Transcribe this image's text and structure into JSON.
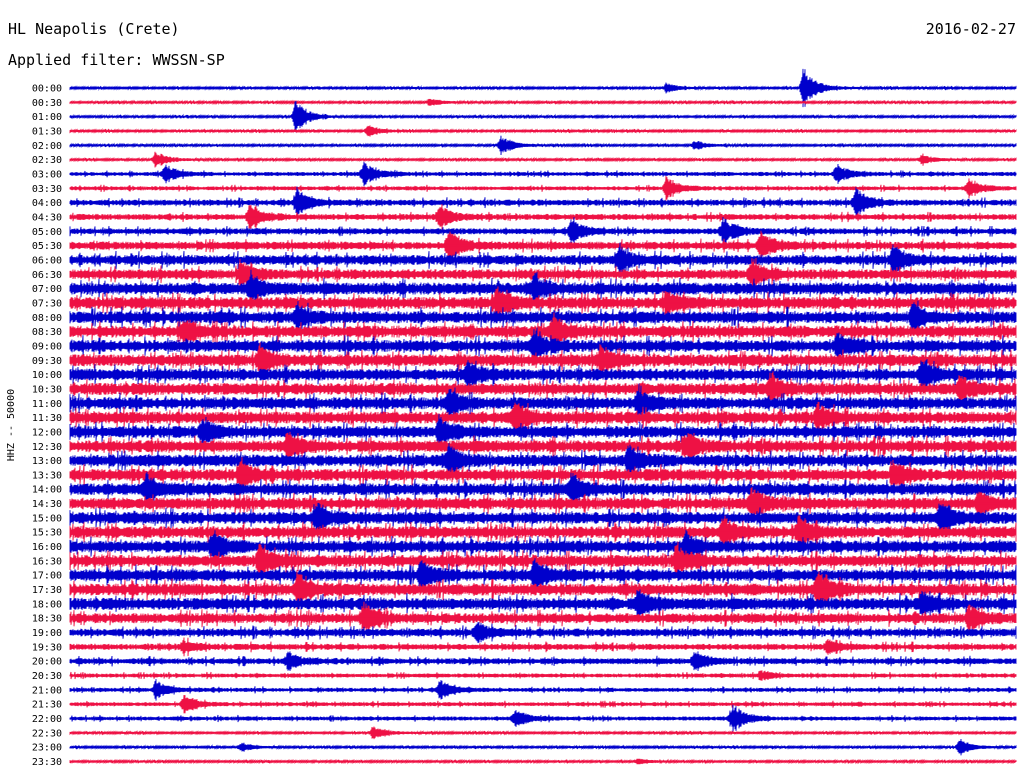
{
  "header": {
    "station": "HL Neapolis (Crete)",
    "date": "2016-02-27",
    "filter": "Applied filter: WWSSN-SP"
  },
  "chart_data": {
    "type": "line",
    "title": "HL Neapolis (Crete)",
    "subtitle": "Applied filter: WWSSN-SP",
    "date": "2016-02-27",
    "ylabel": "HHZ -- 50000",
    "xlabel": "",
    "row_labels": [
      "00:00",
      "00:30",
      "01:00",
      "01:30",
      "02:00",
      "02:30",
      "03:00",
      "03:30",
      "04:00",
      "04:30",
      "05:00",
      "05:30",
      "06:00",
      "06:30",
      "07:00",
      "07:30",
      "08:00",
      "08:30",
      "09:00",
      "09:30",
      "10:00",
      "10:30",
      "11:00",
      "11:30",
      "12:00",
      "12:30",
      "13:00",
      "13:30",
      "14:00",
      "14:30",
      "15:00",
      "15:30",
      "16:00",
      "16:30",
      "17:00",
      "17:30",
      "18:00",
      "18:30",
      "19:00",
      "19:30",
      "20:00",
      "20:30",
      "21:00",
      "21:30",
      "22:00",
      "22:30",
      "23:00",
      "23:30"
    ],
    "series_colors": [
      "#0000cc",
      "#ee1144"
    ],
    "noise_amplitude": [
      1,
      1,
      1,
      1,
      1,
      1,
      2,
      2,
      3,
      3,
      3,
      4,
      5,
      5,
      6,
      6,
      6,
      6,
      6,
      6,
      6,
      6,
      6,
      6,
      6,
      6,
      6,
      6,
      6,
      6,
      6,
      6,
      6,
      6,
      6,
      6,
      6,
      5,
      4,
      3,
      3,
      2,
      2,
      2,
      2,
      1,
      1,
      1
    ],
    "events": [
      {
        "row": 0,
        "x": 0.63,
        "amp": 5
      },
      {
        "row": 0,
        "x": 0.775,
        "amp": 22
      },
      {
        "row": 1,
        "x": 0.38,
        "amp": 4
      },
      {
        "row": 2,
        "x": 0.238,
        "amp": 18
      },
      {
        "row": 3,
        "x": 0.315,
        "amp": 6
      },
      {
        "row": 4,
        "x": 0.455,
        "amp": 10
      },
      {
        "row": 4,
        "x": 0.66,
        "amp": 5
      },
      {
        "row": 5,
        "x": 0.09,
        "amp": 9
      },
      {
        "row": 5,
        "x": 0.9,
        "amp": 6
      },
      {
        "row": 6,
        "x": 0.1,
        "amp": 10
      },
      {
        "row": 6,
        "x": 0.31,
        "amp": 12
      },
      {
        "row": 6,
        "x": 0.81,
        "amp": 10
      },
      {
        "row": 7,
        "x": 0.63,
        "amp": 12
      },
      {
        "row": 7,
        "x": 0.95,
        "amp": 9
      },
      {
        "row": 8,
        "x": 0.24,
        "amp": 14
      },
      {
        "row": 8,
        "x": 0.83,
        "amp": 14
      },
      {
        "row": 9,
        "x": 0.19,
        "amp": 14
      },
      {
        "row": 9,
        "x": 0.39,
        "amp": 12
      },
      {
        "row": 10,
        "x": 0.53,
        "amp": 12
      },
      {
        "row": 10,
        "x": 0.69,
        "amp": 13
      },
      {
        "row": 11,
        "x": 0.4,
        "amp": 14
      },
      {
        "row": 11,
        "x": 0.73,
        "amp": 14
      },
      {
        "row": 12,
        "x": 0.58,
        "amp": 12
      },
      {
        "row": 12,
        "x": 0.87,
        "amp": 14
      },
      {
        "row": 13,
        "x": 0.18,
        "amp": 13
      },
      {
        "row": 13,
        "x": 0.72,
        "amp": 13
      },
      {
        "row": 14,
        "x": 0.19,
        "amp": 12
      },
      {
        "row": 14,
        "x": 0.49,
        "amp": 12
      },
      {
        "row": 15,
        "x": 0.45,
        "amp": 15
      },
      {
        "row": 15,
        "x": 0.63,
        "amp": 12
      },
      {
        "row": 16,
        "x": 0.24,
        "amp": 12
      },
      {
        "row": 16,
        "x": 0.89,
        "amp": 13
      },
      {
        "row": 17,
        "x": 0.12,
        "amp": 12
      },
      {
        "row": 17,
        "x": 0.51,
        "amp": 16
      },
      {
        "row": 18,
        "x": 0.49,
        "amp": 14
      },
      {
        "row": 18,
        "x": 0.81,
        "amp": 12
      },
      {
        "row": 19,
        "x": 0.2,
        "amp": 14
      },
      {
        "row": 19,
        "x": 0.56,
        "amp": 13
      },
      {
        "row": 20,
        "x": 0.42,
        "amp": 12
      },
      {
        "row": 20,
        "x": 0.9,
        "amp": 14
      },
      {
        "row": 21,
        "x": 0.74,
        "amp": 13
      },
      {
        "row": 21,
        "x": 0.94,
        "amp": 12
      },
      {
        "row": 22,
        "x": 0.4,
        "amp": 13
      },
      {
        "row": 22,
        "x": 0.6,
        "amp": 12
      },
      {
        "row": 23,
        "x": 0.47,
        "amp": 15
      },
      {
        "row": 23,
        "x": 0.79,
        "amp": 12
      },
      {
        "row": 24,
        "x": 0.14,
        "amp": 12
      },
      {
        "row": 24,
        "x": 0.39,
        "amp": 13
      },
      {
        "row": 25,
        "x": 0.23,
        "amp": 11
      },
      {
        "row": 25,
        "x": 0.65,
        "amp": 12
      },
      {
        "row": 26,
        "x": 0.4,
        "amp": 14
      },
      {
        "row": 26,
        "x": 0.59,
        "amp": 14
      },
      {
        "row": 27,
        "x": 0.18,
        "amp": 12
      },
      {
        "row": 27,
        "x": 0.87,
        "amp": 12
      },
      {
        "row": 28,
        "x": 0.08,
        "amp": 14
      },
      {
        "row": 28,
        "x": 0.53,
        "amp": 14
      },
      {
        "row": 29,
        "x": 0.72,
        "amp": 15
      },
      {
        "row": 29,
        "x": 0.96,
        "amp": 12
      },
      {
        "row": 30,
        "x": 0.26,
        "amp": 14
      },
      {
        "row": 30,
        "x": 0.92,
        "amp": 14
      },
      {
        "row": 31,
        "x": 0.69,
        "amp": 15
      },
      {
        "row": 31,
        "x": 0.77,
        "amp": 15
      },
      {
        "row": 32,
        "x": 0.15,
        "amp": 13
      },
      {
        "row": 32,
        "x": 0.65,
        "amp": 14
      },
      {
        "row": 33,
        "x": 0.2,
        "amp": 16
      },
      {
        "row": 33,
        "x": 0.64,
        "amp": 16
      },
      {
        "row": 34,
        "x": 0.37,
        "amp": 14
      },
      {
        "row": 34,
        "x": 0.49,
        "amp": 14
      },
      {
        "row": 35,
        "x": 0.24,
        "amp": 16
      },
      {
        "row": 35,
        "x": 0.79,
        "amp": 18
      },
      {
        "row": 36,
        "x": 0.6,
        "amp": 12
      },
      {
        "row": 36,
        "x": 0.9,
        "amp": 12
      },
      {
        "row": 37,
        "x": 0.31,
        "amp": 16
      },
      {
        "row": 37,
        "x": 0.95,
        "amp": 12
      },
      {
        "row": 38,
        "x": 0.43,
        "amp": 10
      },
      {
        "row": 39,
        "x": 0.12,
        "amp": 6
      },
      {
        "row": 39,
        "x": 0.8,
        "amp": 7
      },
      {
        "row": 40,
        "x": 0.23,
        "amp": 9
      },
      {
        "row": 40,
        "x": 0.66,
        "amp": 10
      },
      {
        "row": 41,
        "x": 0.73,
        "amp": 5
      },
      {
        "row": 42,
        "x": 0.09,
        "amp": 10
      },
      {
        "row": 42,
        "x": 0.39,
        "amp": 10
      },
      {
        "row": 43,
        "x": 0.12,
        "amp": 10
      },
      {
        "row": 44,
        "x": 0.47,
        "amp": 9
      },
      {
        "row": 44,
        "x": 0.7,
        "amp": 14
      },
      {
        "row": 45,
        "x": 0.32,
        "amp": 8
      },
      {
        "row": 46,
        "x": 0.18,
        "amp": 5
      },
      {
        "row": 46,
        "x": 0.94,
        "amp": 9
      },
      {
        "row": 47,
        "x": 0.6,
        "amp": 3
      }
    ]
  }
}
